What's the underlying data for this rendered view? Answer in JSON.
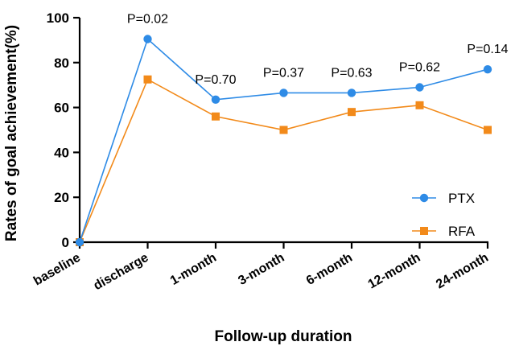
{
  "chart_data": {
    "type": "line",
    "title": "",
    "xlabel": "Follow-up duration",
    "ylabel": "Rates of goal achievement(%)",
    "ylim": [
      0,
      100
    ],
    "yticks": [
      "0",
      "20",
      "40",
      "60",
      "80",
      "100"
    ],
    "categories": [
      "baseline",
      "discharge",
      "1-month",
      "3-month",
      "6-month",
      "12-month",
      "24-month"
    ],
    "series": [
      {
        "name": "PTX",
        "marker": "circle",
        "color": "#2E8BE6",
        "values": [
          0,
          90.5,
          63.5,
          66.5,
          66.5,
          69,
          77
        ]
      },
      {
        "name": "RFA",
        "marker": "square",
        "color": "#F28A1A",
        "values": [
          0,
          72.5,
          56,
          50,
          58,
          61,
          50
        ]
      }
    ],
    "annotations": [
      "",
      "P=0.02",
      "P=0.70",
      "P=0.37",
      "P=0.63",
      "P=0.62",
      "P=0.14"
    ],
    "legend_position": "bottom-right",
    "grid": false
  }
}
